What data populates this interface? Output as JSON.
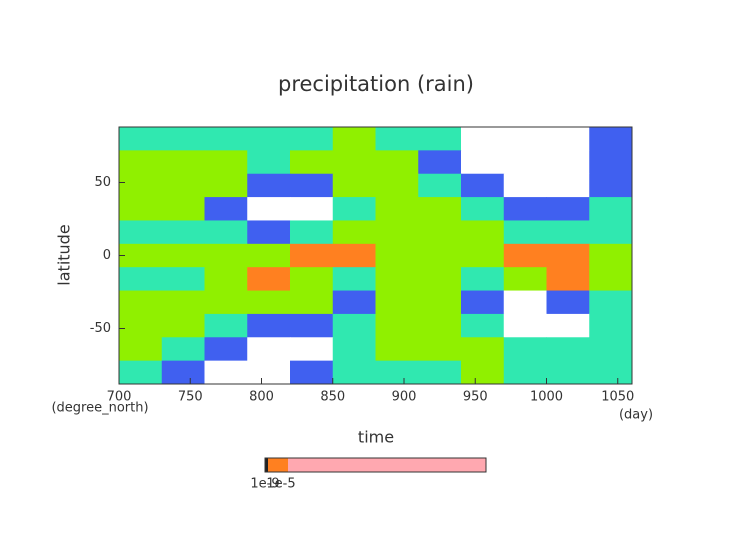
{
  "chart_data": {
    "type": "heatmap",
    "title": "precipitation (rain)",
    "x_label": "time",
    "y_label": "latitude",
    "x_unit": "(day)",
    "y_unit": "(degree_north)",
    "xlim": [
      700,
      1060
    ],
    "ylim": [
      -88,
      88
    ],
    "xticks": [
      700,
      750,
      800,
      850,
      900,
      950,
      1000,
      1050
    ],
    "yticks": [
      -50,
      0,
      50
    ],
    "x_edges": [
      700,
      730,
      760,
      790,
      820,
      850,
      880,
      910,
      940,
      970,
      1000,
      1030,
      1060
    ],
    "y_edges": [
      88,
      72,
      56,
      40,
      24,
      8,
      -8,
      -24,
      -40,
      -56,
      -72,
      -88
    ],
    "colors": [
      "#ffffff",
      "#4060f0",
      "#30e8b0",
      "#90f000",
      "#ff8020"
    ],
    "z": [
      [
        2,
        2,
        2,
        2,
        2,
        3,
        2,
        2,
        0,
        0,
        0,
        1
      ],
      [
        3,
        3,
        3,
        2,
        3,
        3,
        3,
        1,
        0,
        0,
        0,
        1
      ],
      [
        3,
        3,
        3,
        1,
        1,
        3,
        3,
        2,
        1,
        0,
        0,
        1
      ],
      [
        3,
        3,
        1,
        0,
        0,
        2,
        3,
        3,
        2,
        1,
        1,
        2
      ],
      [
        2,
        2,
        2,
        1,
        2,
        3,
        3,
        3,
        3,
        2,
        2,
        2
      ],
      [
        3,
        3,
        3,
        3,
        4,
        4,
        3,
        3,
        3,
        4,
        4,
        3
      ],
      [
        2,
        2,
        3,
        4,
        3,
        2,
        3,
        3,
        2,
        3,
        4,
        3
      ],
      [
        3,
        3,
        3,
        3,
        3,
        1,
        3,
        3,
        1,
        0,
        1,
        2
      ],
      [
        3,
        3,
        2,
        1,
        1,
        2,
        3,
        3,
        2,
        0,
        0,
        2
      ],
      [
        3,
        2,
        1,
        0,
        0,
        2,
        3,
        3,
        3,
        2,
        2,
        2
      ],
      [
        2,
        1,
        0,
        0,
        1,
        2,
        2,
        2,
        3,
        2,
        2,
        2
      ]
    ],
    "colorbar_ticks": [
      "1e-9",
      "1e-5"
    ]
  }
}
